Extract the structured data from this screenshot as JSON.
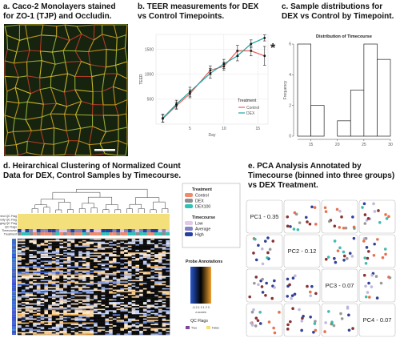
{
  "panels": {
    "a": {
      "caption": [
        "a. Caco-2 Monolayers stained",
        "for ZO-1 (TJP) and Occludin."
      ]
    },
    "b": {
      "caption": [
        "b. TEER measurements for DEX",
        "vs Control Timepoints."
      ]
    },
    "c": {
      "caption": [
        "c. Sample distributions for",
        "DEX vs Control by Timepoint."
      ]
    },
    "d": {
      "caption": [
        "d. Heirarchical Clustering of Normalized Count",
        "Data for DEX, Control Samples by Timecourse."
      ]
    },
    "e": {
      "caption": [
        "e. PCA Analysis Annotated by",
        "Timecourse (binned into three groups)",
        "vs DEX Treatment."
      ]
    }
  },
  "chart_data": [
    {
      "type": "line",
      "xlabel": "Day",
      "ylabel": "TEER",
      "x": [
        1,
        3,
        5,
        8,
        10,
        12,
        14,
        16
      ],
      "xlim": [
        0,
        16.5
      ],
      "xticks": [
        5,
        10,
        15
      ],
      "ylim": [
        0,
        1800
      ],
      "yticks": [
        500,
        1000,
        1500
      ],
      "grid": true,
      "legend": {
        "title": "Treatment"
      },
      "annotation": "*",
      "series": [
        {
          "name": "Control",
          "color": "#e8605a",
          "values": [
            110,
            370,
            610,
            1080,
            1160,
            1470,
            1470,
            1370
          ],
          "errors": [
            70,
            70,
            80,
            90,
            80,
            110,
            100,
            190
          ]
        },
        {
          "name": "DEX",
          "color": "#1aa5a5",
          "values": [
            120,
            400,
            650,
            1020,
            1210,
            1370,
            1610,
            1730
          ],
          "errors": [
            80,
            80,
            90,
            100,
            90,
            100,
            80,
            60
          ]
        }
      ]
    },
    {
      "type": "histogram",
      "title": "Distribution of Timecourse",
      "ylabel": "Frequency",
      "bins": [
        12.5,
        15,
        17.5,
        20,
        22.5,
        25,
        27.5,
        30
      ],
      "counts": [
        6,
        2,
        0,
        1,
        3,
        6,
        5
      ],
      "xlim": [
        12.5,
        30
      ],
      "xticks": [
        15,
        20,
        25,
        30
      ],
      "ylim": [
        0,
        6
      ],
      "yticks": [
        0,
        2,
        4,
        6
      ]
    }
  ],
  "heatmap": {
    "row_labels": [
      "Low Control QC Flag",
      "Avg Density QC Flag",
      "Imaging QC Flag",
      "QC Flags",
      "Timecourse",
      "Treatment"
    ],
    "treatment": {
      "title": "Treatment",
      "items": [
        {
          "label": "Control",
          "color": "#f08a6a"
        },
        {
          "label": "DEX",
          "color": "#8e8e8e"
        },
        {
          "label": "DEX100",
          "color": "#2cc4b4"
        }
      ]
    },
    "timecourse": {
      "title": "Timecourse",
      "items": [
        {
          "label": "Low",
          "color": "#e2c8ea"
        },
        {
          "label": "Average",
          "color": "#8484c4"
        },
        {
          "label": "High",
          "color": "#2440a0"
        }
      ]
    },
    "probe": {
      "title": "Probe Annotations",
      "scale": "-3-2-1 0 1 2 3",
      "unit": "z-scores"
    },
    "qc": {
      "title": "QC Flags",
      "items": [
        {
          "label": "True",
          "color": "#7a4a9a"
        },
        {
          "label": "False",
          "color": "#f3e07a"
        }
      ]
    }
  },
  "pca": {
    "labels": [
      "PC1 - 0.35",
      "PC2 - 0.12",
      "PC3 - 0.07",
      "PC4 - 0.07"
    ]
  }
}
